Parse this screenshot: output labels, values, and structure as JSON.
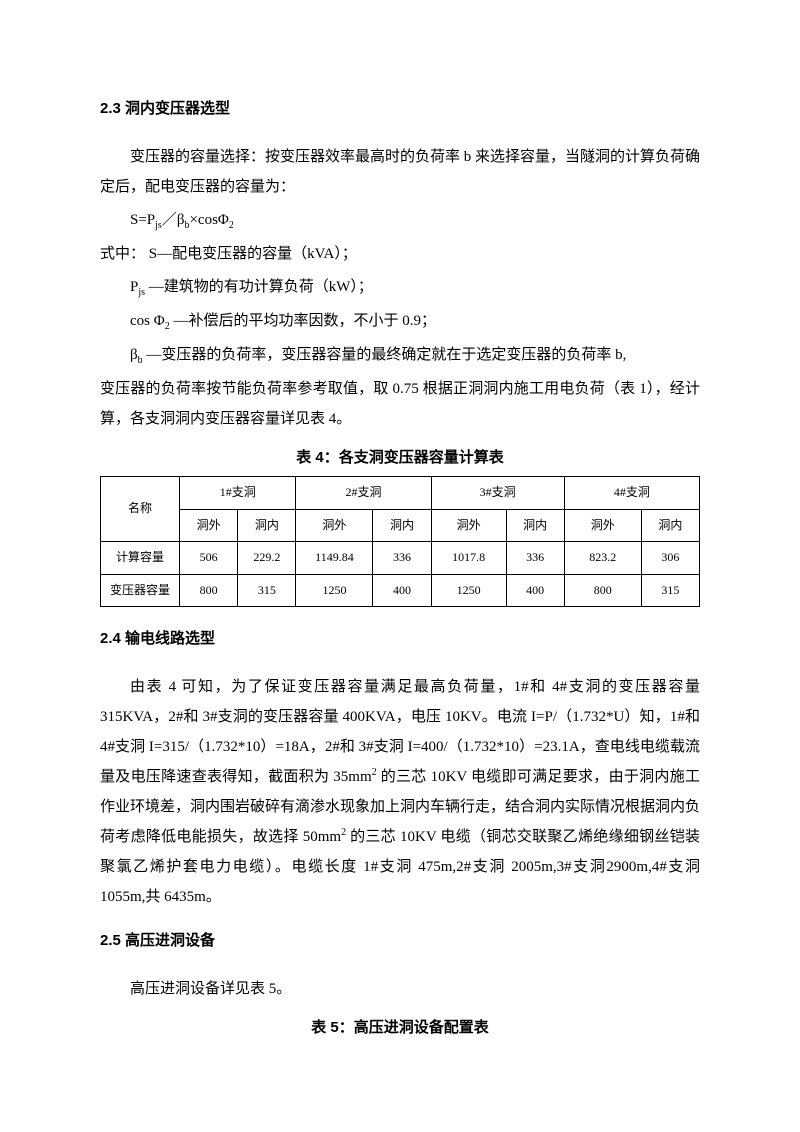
{
  "section23": {
    "heading": "2.3 洞内变压器选型",
    "p1": "变压器的容量选择：按变压器效率最高时的负荷率 b 来选择容量，当隧洞的计算负荷确定后，配电变压器的容量为：",
    "formula": "S=Pjs／βb×cosΦ2",
    "p2_prefix": "式中：",
    "p2": " S—配电变压器的容量（kVA）；",
    "p3": "Pjs —建筑物的有功计算负荷（kW）；",
    "p4": "cos Φ2 —补偿后的平均功率因数，不小于 0.9；",
    "p5": "βb —变压器的负荷率，变压器容量的最终确定就在于选定变压器的负荷率 b,变压器的负荷率按节能负荷率参考取值，取 0.75 根据正洞洞内施工用电负荷（表 1），经计算，各支洞洞内变压器容量详见表 4。"
  },
  "table4": {
    "title": "表 4：各支洞变压器容量计算表",
    "header_name": "名称",
    "groups": [
      "1#支洞",
      "2#支洞",
      "3#支洞",
      "4#支洞"
    ],
    "sub": {
      "out": "洞外",
      "in": "洞内"
    },
    "rows": [
      {
        "label": "计算容量",
        "cells": [
          "506",
          "229.2",
          "1149.84",
          "336",
          "1017.8",
          "336",
          "823.2",
          "306"
        ]
      },
      {
        "label": "变压器容量",
        "cells": [
          "800",
          "315",
          "1250",
          "400",
          "1250",
          "400",
          "800",
          "315"
        ]
      }
    ],
    "col_widths": [
      "76",
      "56",
      "56",
      "74",
      "56",
      "72",
      "56",
      "74",
      "56"
    ]
  },
  "section24": {
    "heading": "2.4 输电线路选型",
    "p1_a": "由表 4 可知，为了保证变压器容量满足最高负荷量，1#和 4#支洞的变压器容量315KVA，2#和 3#支洞的变压器容量 400KVA，电压 10KV。电流 I=P/（1.732*U）知，1#和4#支洞 I=315/（1.732*10）=18A，2#和 3#支洞 I=400/（1.732*10）=23.1A，查电线电缆载流量及电压降速查表得知，截面积为 35mm",
    "p1_b": " 的三芯 10KV 电缆即可满足要求，由于洞内施工作业环境差，洞内围岩破碎有滴渗水现象加上洞内车辆行走，结合洞内实际情况根据洞内负荷考虑降低电能损失，故选择 50mm",
    "p1_c": " 的三芯 10KV 电缆（铜芯交联聚乙烯绝缘细钢丝铠装聚氯乙烯护套电力电缆）。电缆长度 1#支洞 475m,2#支洞 2005m,3#支洞2900m,4#支洞 1055m,共 6435m。"
  },
  "section25": {
    "heading": "2.5 高压进洞设备",
    "p1": "高压进洞设备详见表 5。"
  },
  "table5": {
    "title": "表 5：高压进洞设备配置表"
  }
}
